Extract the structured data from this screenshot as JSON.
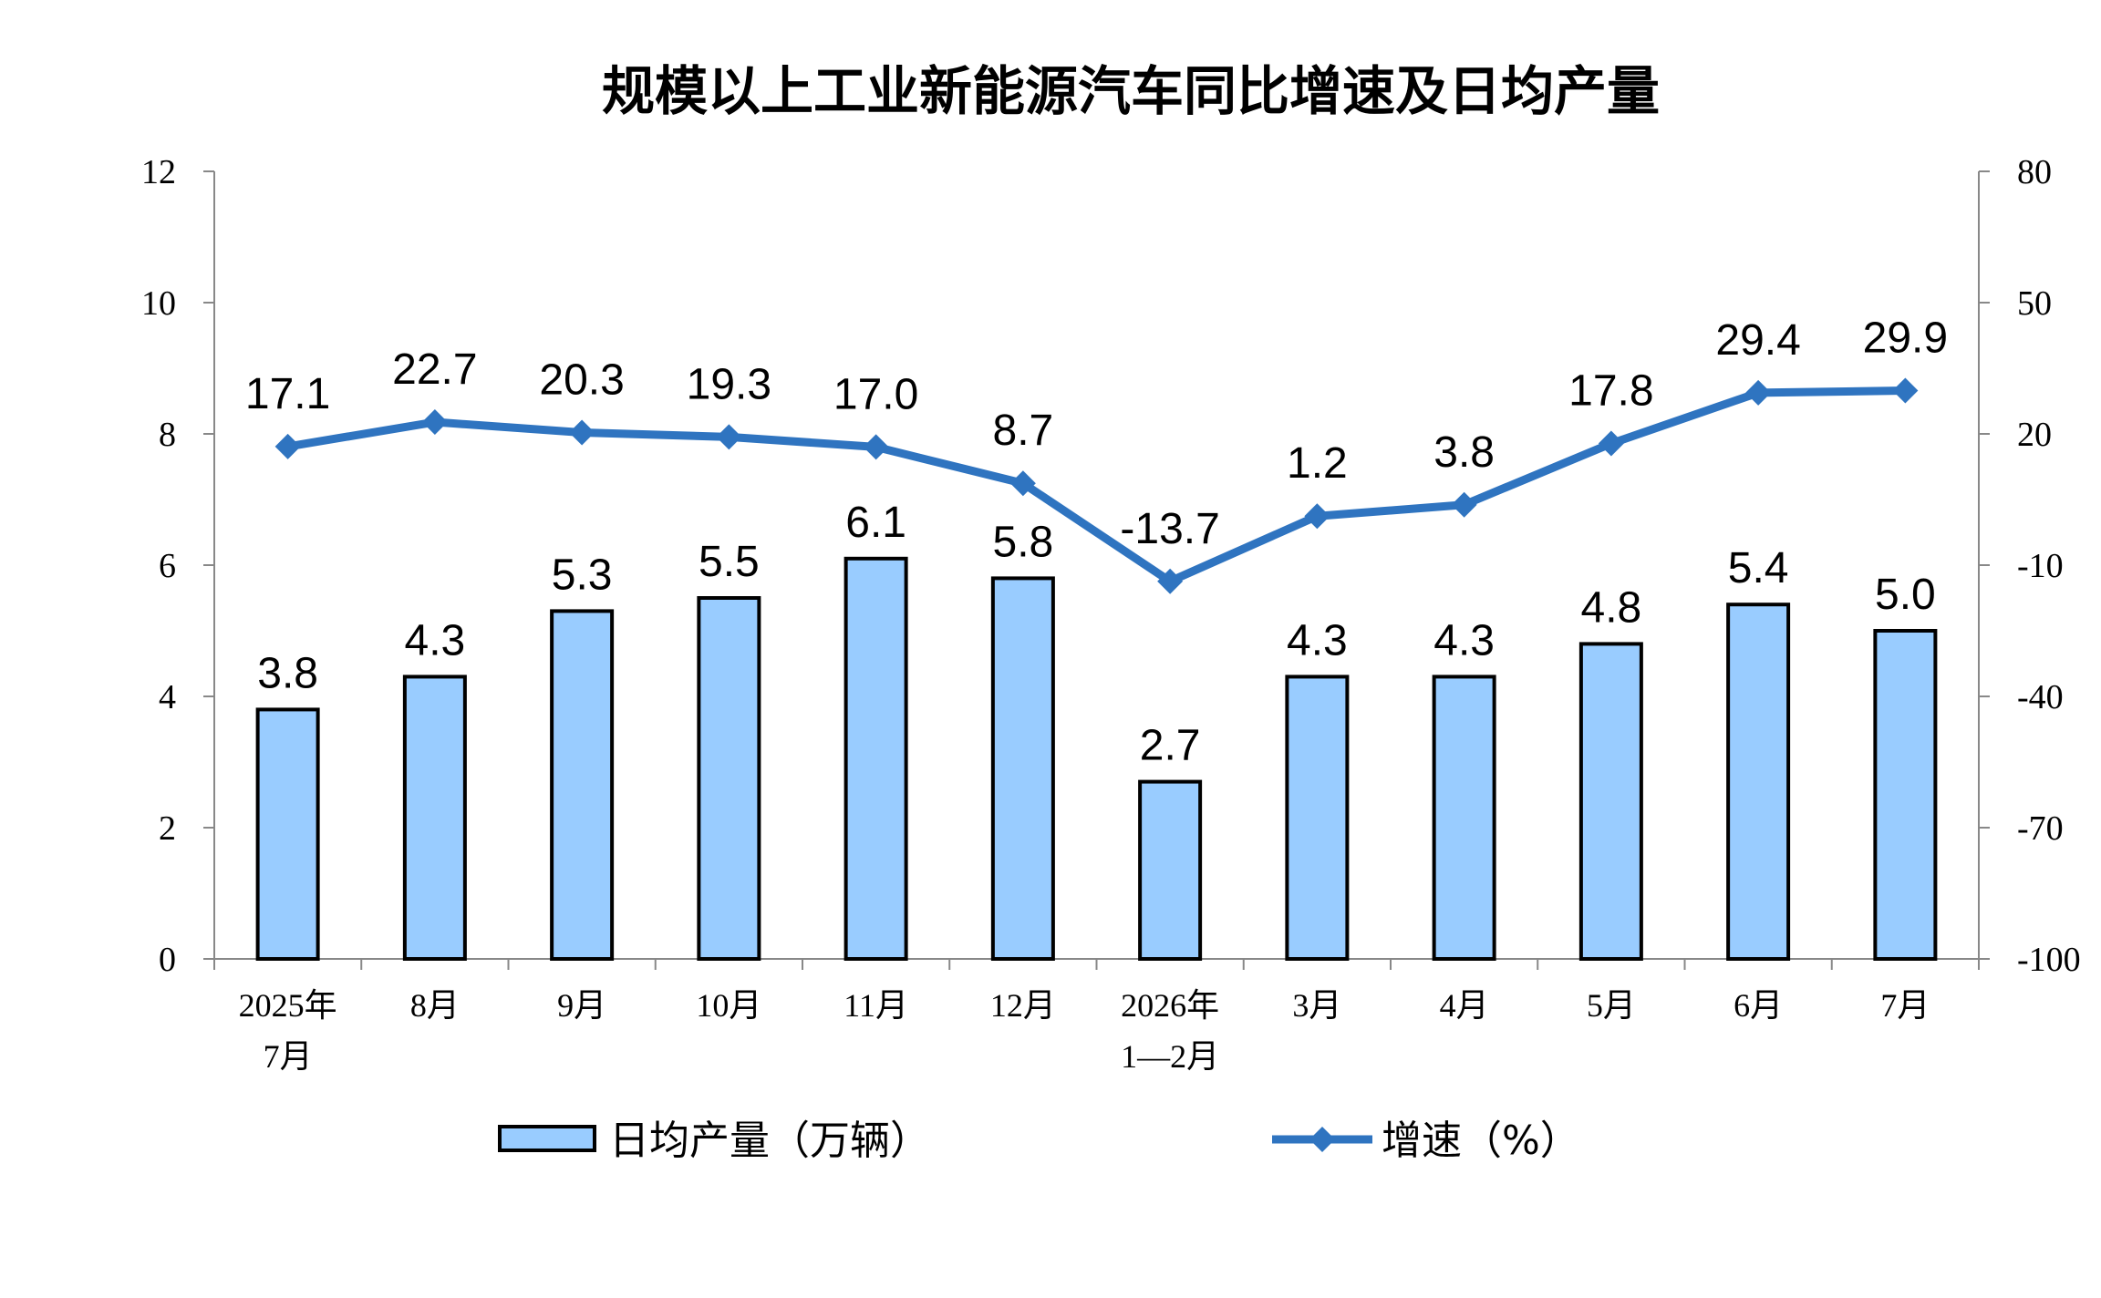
{
  "chart_data": {
    "type": "bar",
    "title": "规模以上工业新能源汽车同比增速及日均产量",
    "categories": [
      [
        "2025年",
        "7月"
      ],
      [
        "8月"
      ],
      [
        "9月"
      ],
      [
        "10月"
      ],
      [
        "11月"
      ],
      [
        "12月"
      ],
      [
        "2026年",
        "1—2月"
      ],
      [
        "3月"
      ],
      [
        "4月"
      ],
      [
        "5月"
      ],
      [
        "6月"
      ],
      [
        "7月"
      ]
    ],
    "series": [
      {
        "name": "日均产量（万辆）",
        "type": "bar",
        "axis": "left",
        "color": "#99CCFF",
        "values": [
          3.8,
          4.3,
          5.3,
          5.5,
          6.1,
          5.8,
          2.7,
          4.3,
          4.3,
          4.8,
          5.4,
          5.0
        ],
        "labels": [
          "3.8",
          "4.3",
          "5.3",
          "5.5",
          "6.1",
          "5.8",
          "2.7",
          "4.3",
          "4.3",
          "4.8",
          "5.4",
          "5.0"
        ]
      },
      {
        "name": "增速（%）",
        "type": "line",
        "axis": "right",
        "color": "#2F74C0",
        "marker": "diamond",
        "values": [
          17.1,
          22.7,
          20.3,
          19.3,
          17.0,
          8.7,
          -13.7,
          1.2,
          3.8,
          17.8,
          29.4,
          29.9
        ],
        "labels": [
          "17.1",
          "22.7",
          "20.3",
          "19.3",
          "17.0",
          "8.7",
          "-13.7",
          "1.2",
          "3.8",
          "17.8",
          "29.4",
          "29.9"
        ]
      }
    ],
    "y_left": {
      "min": 0,
      "max": 12,
      "ticks": [
        0,
        2,
        4,
        6,
        8,
        10,
        12
      ]
    },
    "y_right": {
      "min": -100,
      "max": 80,
      "ticks": [
        -100,
        -70,
        -40,
        -10,
        20,
        50,
        80
      ]
    },
    "legend_position": "bottom",
    "grid": false
  }
}
